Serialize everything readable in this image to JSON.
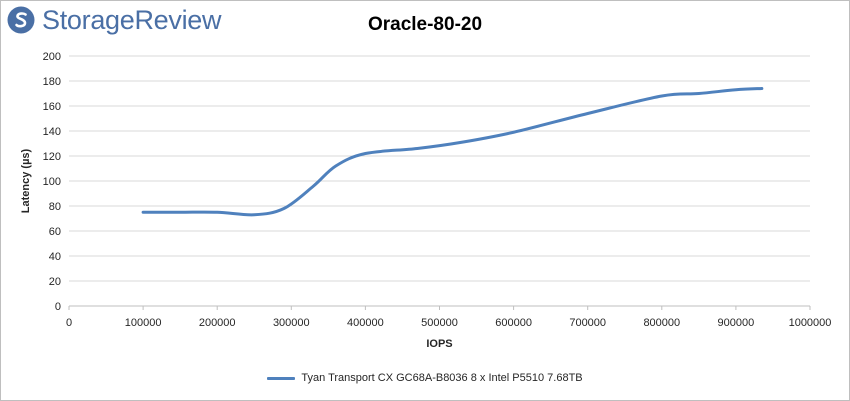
{
  "brand": {
    "logo_text": "StorageReview",
    "icon": "storagereview-logo-icon",
    "color": "#4a6fa5"
  },
  "chart_data": {
    "type": "line",
    "title": "Oracle-80-20",
    "xlabel": "IOPS",
    "ylabel": "Latency (µs)",
    "xlim": [
      0,
      1000000
    ],
    "ylim": [
      0,
      200
    ],
    "x_ticks": [
      0,
      100000,
      200000,
      300000,
      400000,
      500000,
      600000,
      700000,
      800000,
      900000,
      1000000
    ],
    "y_ticks": [
      0,
      20,
      40,
      60,
      80,
      100,
      120,
      140,
      160,
      180,
      200
    ],
    "grid": "horizontal",
    "legend_position": "bottom",
    "series": [
      {
        "name": "Tyan Transport CX GC68A-B8036 8 x Intel P5510 7.68TB",
        "color": "#4f81bd",
        "x": [
          100000,
          150000,
          200000,
          250000,
          290000,
          330000,
          360000,
          400000,
          470000,
          530000,
          600000,
          700000,
          800000,
          850000,
          900000,
          935000
        ],
        "y": [
          75,
          75,
          75,
          73,
          78,
          96,
          112,
          122,
          126,
          131,
          139,
          154,
          168,
          170,
          173,
          174
        ]
      }
    ]
  }
}
